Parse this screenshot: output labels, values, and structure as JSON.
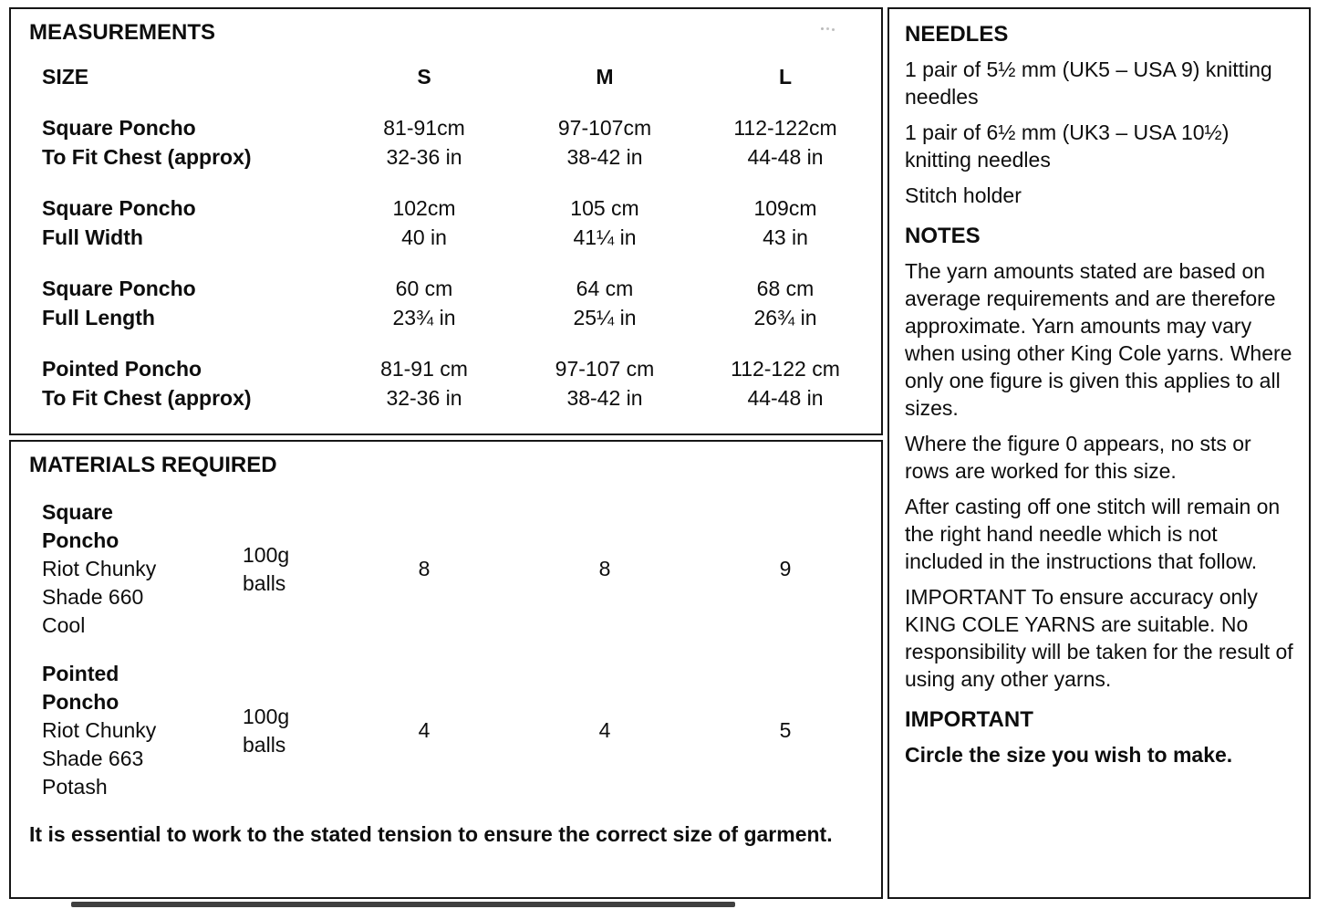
{
  "measurements": {
    "title": "MEASUREMENTS",
    "header": {
      "size": "SIZE",
      "s": "S",
      "m": "M",
      "l": "L"
    },
    "rows": [
      {
        "label": [
          "Square Poncho",
          "To Fit Chest (approx)"
        ],
        "s": [
          "81-91cm",
          "32-36 in"
        ],
        "m": [
          "97-107cm",
          "38-42 in"
        ],
        "l": [
          "112-122cm",
          "44-48 in"
        ]
      },
      {
        "label": [
          "Square Poncho",
          "Full Width"
        ],
        "s": [
          "102cm",
          "40 in"
        ],
        "m": [
          "105 cm",
          "41¼ in"
        ],
        "l": [
          "109cm",
          "43 in"
        ]
      },
      {
        "label": [
          "Square Poncho",
          "Full Length"
        ],
        "s": [
          "60 cm",
          "23¾ in"
        ],
        "m": [
          "64 cm",
          "25¼ in"
        ],
        "l": [
          "68 cm",
          "26¾ in"
        ]
      },
      {
        "label": [
          "Pointed Poncho",
          "To Fit Chest (approx)"
        ],
        "s": [
          "81-91 cm",
          "32-36 in"
        ],
        "m": [
          "97-107 cm",
          "38-42 in"
        ],
        "l": [
          "112-122 cm",
          "44-48 in"
        ]
      }
    ]
  },
  "materials": {
    "title": "MATERIALS REQUIRED",
    "rows": [
      {
        "name": [
          "Square",
          "Poncho"
        ],
        "desc": [
          "Riot Chunky",
          "Shade 660",
          "Cool"
        ],
        "unit": [
          "100g",
          "balls"
        ],
        "s": "8",
        "m": "8",
        "l": "9"
      },
      {
        "name": [
          "Pointed",
          "Poncho"
        ],
        "desc": [
          "Riot Chunky",
          "Shade 663",
          "Potash"
        ],
        "unit": [
          "100g",
          "balls"
        ],
        "s": "4",
        "m": "4",
        "l": "5"
      }
    ],
    "tension_note": "It is essential to work to the stated tension to ensure the correct size of garment."
  },
  "sidebar": {
    "needles_title": "NEEDLES",
    "needles": [
      "1 pair of 5½ mm (UK5 – USA 9) knitting needles",
      "1 pair of 6½ mm (UK3 – USA 10½) knitting needles",
      "Stitch holder"
    ],
    "notes_title": "NOTES",
    "notes": [
      "The yarn amounts stated are based on average requirements and are therefore approximate. Yarn amounts may vary when using other King Cole yarns. Where only one figure is given this applies to all sizes.",
      "Where the figure 0 appears, no sts or rows are worked for this size.",
      "After casting off one stitch will remain on the right hand needle which is not included in the instructions that follow.",
      "IMPORTANT  To ensure accuracy only KING COLE YARNS are suitable. No responsibility will be taken for the result of using any other yarns."
    ],
    "important_title": "IMPORTANT",
    "important_text": "Circle the size you wish to make."
  }
}
